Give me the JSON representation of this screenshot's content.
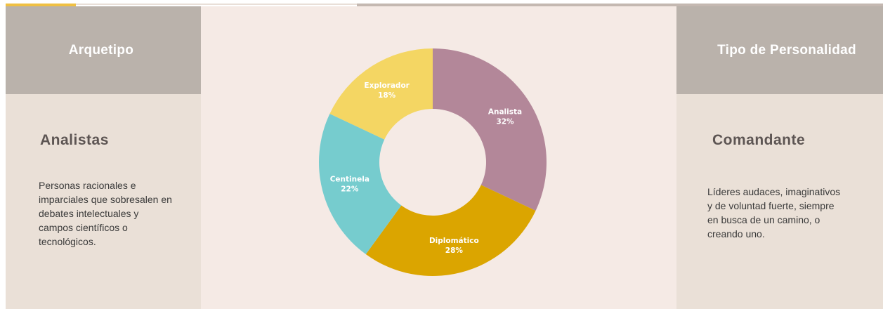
{
  "left_panel": {
    "header": "Arquetipo",
    "title": "Analistas",
    "description": "Personas racionales e imparciales que sobresalen en debates intelectuales y campos científicos o tecnológicos."
  },
  "right_panel": {
    "header": "Tipo de Personalidad",
    "title": "Comandante",
    "description": "Líderes audaces, imaginativos y de voluntad fuerte, siempre en busca de un camino, o creando uno."
  },
  "chart_data": {
    "type": "pie",
    "donut": true,
    "slices": [
      {
        "label": "Analista",
        "value": 32,
        "value_label": "32%",
        "color": "#b38799"
      },
      {
        "label": "Diplomático",
        "value": 28,
        "value_label": "28%",
        "color": "#dba500"
      },
      {
        "label": "Centinela",
        "value": 22,
        "value_label": "22%",
        "color": "#76ccce"
      },
      {
        "label": "Explorador",
        "value": 18,
        "value_label": "18%",
        "color": "#f4d663"
      }
    ]
  },
  "colors": {
    "accent": "#f0c043",
    "header_bg": "#bab2ab",
    "panel_bg": "#eae0d7",
    "center_bg": "#f5eae5"
  }
}
